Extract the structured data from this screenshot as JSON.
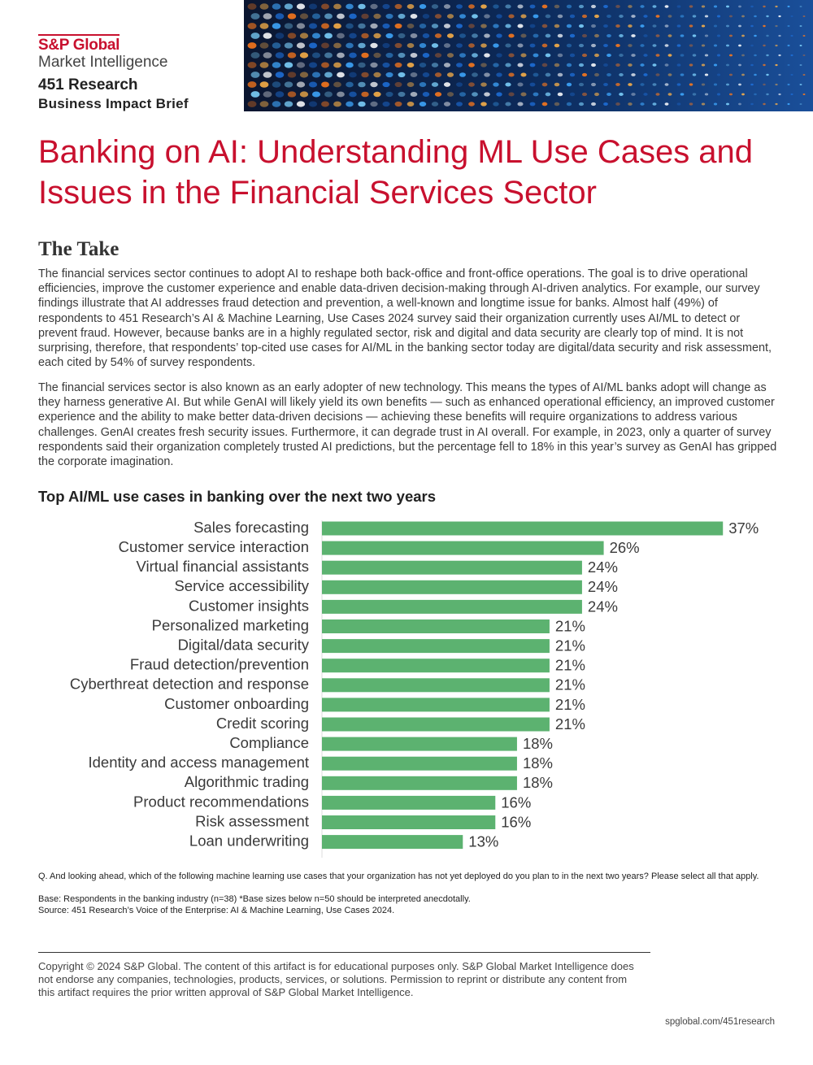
{
  "header": {
    "brand": "S&P Global",
    "subbrand": "Market Intelligence",
    "unit": "451 Research",
    "brief_type": "Business Impact Brief"
  },
  "title": "Banking on AI: Understanding ML Use Cases and Issues in the Financial Services Sector",
  "section": {
    "heading": "The Take",
    "paragraphs": [
      "The financial services sector continues to adopt AI to reshape both back-office and front-office operations. The goal is to drive operational efficiencies, improve the customer experience and enable data-driven decision-making through AI-driven analytics. For example, our survey findings illustrate that AI addresses fraud detection and prevention, a well-known and longtime issue for banks. Almost half (49%) of respondents to 451 Research’s AI & Machine Learning, Use Cases 2024 survey said their organization currently uses AI/ML to detect or prevent fraud. However, because banks are in a highly regulated sector, risk and digital and data security are clearly top of mind. It is not surprising, therefore, that respondents’ top-cited use cases for AI/ML in the banking sector today are digital/data security and risk assessment, each cited by 54% of survey respondents.",
      "The financial services sector is also known as an early adopter of new technology. This means the types of AI/ML banks adopt will change as they harness generative AI. But while GenAI will likely yield its own benefits — such as enhanced operational efficiency, an improved customer experience and the ability to make better data-driven decisions — achieving these benefits will require organizations to address various challenges. GenAI creates fresh security issues. Furthermore, it can degrade trust in AI overall. For example, in 2023, only a quarter of survey respondents said their organization completely trusted AI predictions, but the percentage fell to 18% in this year’s survey as GenAI has gripped the corporate imagination."
    ]
  },
  "chart_data": {
    "type": "bar",
    "orientation": "horizontal",
    "title": "Top AI/ML use cases in banking over the next two years",
    "categories": [
      "Sales forecasting",
      "Customer service interaction",
      "Virtual financial assistants",
      "Service accessibility",
      "Customer insights",
      "Personalized marketing",
      "Digital/data security",
      "Fraud detection/prevention",
      "Cyberthreat detection and response",
      "Customer onboarding",
      "Credit scoring",
      "Compliance",
      "Identity and access management",
      "Algorithmic trading",
      "Product recommendations",
      "Risk assessment",
      "Loan underwriting"
    ],
    "values": [
      37,
      26,
      24,
      24,
      24,
      21,
      21,
      21,
      21,
      21,
      21,
      18,
      18,
      18,
      16,
      16,
      13
    ],
    "value_labels": [
      "37%",
      "26%",
      "24%",
      "24%",
      "24%",
      "21%",
      "21%",
      "21%",
      "21%",
      "21%",
      "21%",
      "18%",
      "18%",
      "18%",
      "16%",
      "16%",
      "13%"
    ],
    "color": "#5cb270"
  },
  "notes": [
    "Q. And looking ahead, which of the following machine learning use cases that your organization has not yet deployed do you plan to in the next two years? Please select all that apply.",
    "Base: Respondents in the banking industry (n=38) *Base sizes below n=50 should be interpreted anecdotally.",
    "Source: 451 Research’s Voice of the Enterprise: AI & Machine Learning, Use Cases 2024."
  ],
  "footer": {
    "copyright": "Copyright © 2024 S&P Global. The content of this artifact is for educational purposes only. S&P Global Market Intelligence does not endorse any companies, technologies, products, services, or solutions. Permission to reprint or distribute any content from this artifact requires the prior written approval of S&P Global Market Intelligence.",
    "url": "spglobal.com/451research"
  }
}
